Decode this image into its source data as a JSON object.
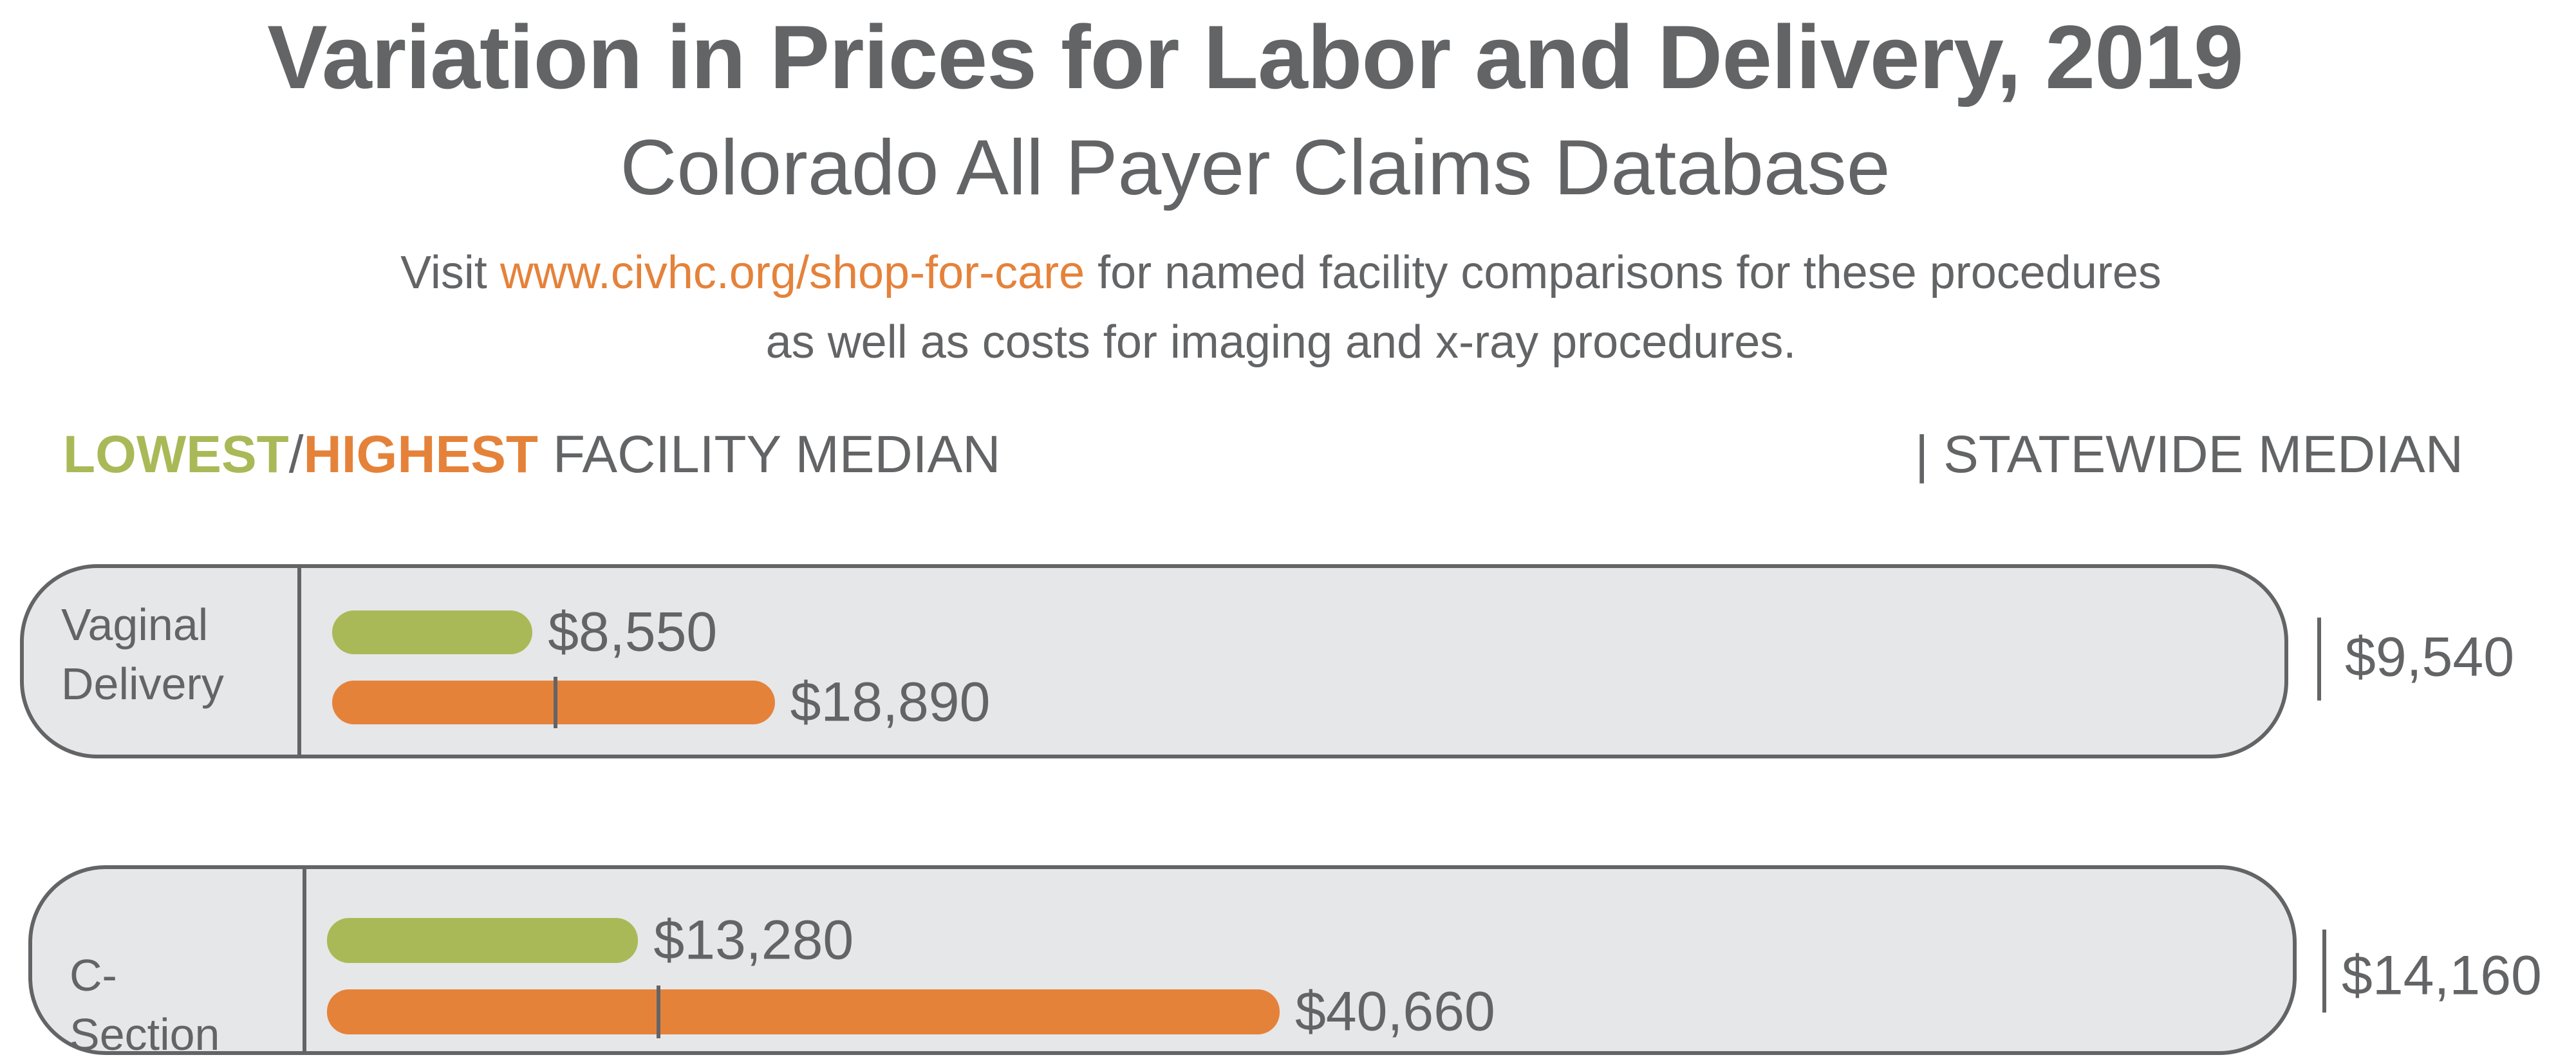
{
  "chart_data": {
    "type": "bar",
    "orientation": "horizontal",
    "title": "Variation in Prices for Labor and Delivery, 2019",
    "subtitle": "Colorado All Payer Claims Database",
    "note": {
      "before": "Visit",
      "link": "www.civhc.org/shop-for-care",
      "after": "for named facility comparisons for these procedures as well as costs for imaging and x-ray procedures.",
      "link_color": "#e5823a"
    },
    "legend": {
      "separator": "/",
      "suffix": "FACILITY MEDIAN"
    },
    "categories": [
      "Vaginal Delivery",
      "C-Section"
    ],
    "series": [
      {
        "name": "LOWEST",
        "color": "#a9b957",
        "values": [
          8550,
          13280
        ],
        "value_labels": [
          "$8,550",
          "$13,280"
        ]
      },
      {
        "name": "HIGHEST",
        "color": "#e5823a",
        "values": [
          18890,
          40660
        ],
        "value_labels": [
          "$18,890",
          "$40,660"
        ]
      }
    ],
    "statewide_median": {
      "name": "| STATEWIDE MEDIAN",
      "color": "#636466",
      "values": [
        9540,
        14160
      ],
      "value_labels": [
        "$9,540",
        "$14,160"
      ]
    }
  }
}
